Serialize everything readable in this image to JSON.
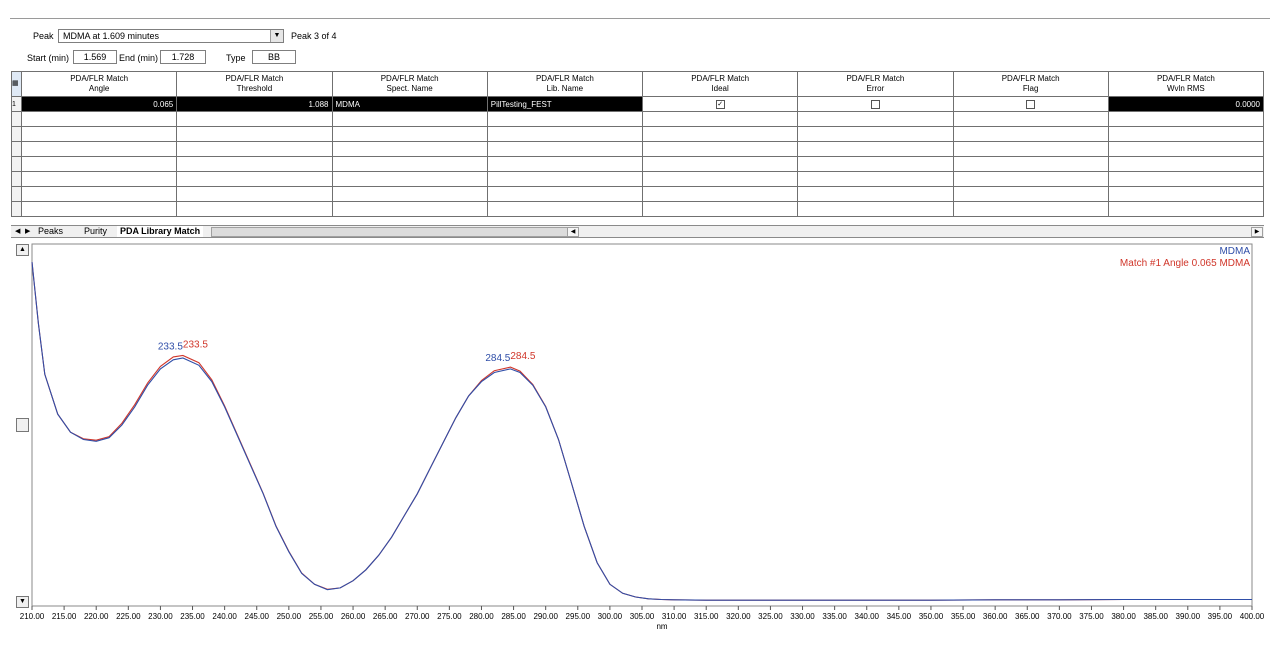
{
  "peak_selector": {
    "label": "Peak",
    "value": "MDMA at 1.609 minutes",
    "count": "Peak 3 of 4"
  },
  "times": {
    "start_label": "Start (min)",
    "start_value": "1.569",
    "end_label": "End (min)",
    "end_value": "1.728",
    "type_label": "Type",
    "type_value": "BB"
  },
  "table": {
    "columns": [
      {
        "line1": "PDA/FLR Match",
        "line2": "Angle"
      },
      {
        "line1": "PDA/FLR Match",
        "line2": "Threshold"
      },
      {
        "line1": "PDA/FLR Match",
        "line2": "Spect. Name"
      },
      {
        "line1": "PDA/FLR Match",
        "line2": "Lib. Name"
      },
      {
        "line1": "PDA/FLR Match",
        "line2": "Ideal"
      },
      {
        "line1": "PDA/FLR Match",
        "line2": "Error"
      },
      {
        "line1": "PDA/FLR Match",
        "line2": "Flag"
      },
      {
        "line1": "PDA/FLR Match",
        "line2": "Wvln RMS"
      }
    ],
    "row1": {
      "index": "1",
      "angle": "0.065",
      "threshold": "1.088",
      "spect_name": "MDMA",
      "lib_name": "PillTesting_FEST",
      "ideal": true,
      "error": false,
      "flag": false,
      "wvln_rms": "0.0000"
    }
  },
  "tabs": [
    {
      "label": "Peaks",
      "active": false
    },
    {
      "label": "Purity",
      "active": false
    },
    {
      "label": "PDA Library Match",
      "active": true
    }
  ],
  "colors": {
    "series_sample": "#2f4ea8",
    "series_match": "#d0362a"
  },
  "chart_data": {
    "type": "line",
    "xlabel": "nm",
    "xlim": [
      210,
      400
    ],
    "x_ticks": [
      "210.00",
      "215.00",
      "220.00",
      "225.00",
      "230.00",
      "235.00",
      "240.00",
      "245.00",
      "250.00",
      "255.00",
      "260.00",
      "265.00",
      "270.00",
      "275.00",
      "280.00",
      "285.00",
      "290.00",
      "295.00",
      "300.00",
      "305.00",
      "310.00",
      "315.00",
      "320.00",
      "325.00",
      "330.00",
      "335.00",
      "340.00",
      "345.00",
      "350.00",
      "355.00",
      "360.00",
      "365.00",
      "370.00",
      "375.00",
      "380.00",
      "385.00",
      "390.00",
      "395.00",
      "400.00"
    ],
    "ylim": [
      0,
      1
    ],
    "legend": [
      "MDMA",
      "Match #1 Angle 0.065 MDMA"
    ],
    "legend_placement": "top-right",
    "peak_labels": [
      {
        "x": 233.5,
        "sample_label": "233.5",
        "match_label": "233.5"
      },
      {
        "x": 284.5,
        "sample_label": "284.5",
        "match_label": "284.5"
      }
    ],
    "series": [
      {
        "name": "MDMA",
        "x": [
          210,
          211,
          212,
          214,
          216,
          218,
          220,
          222,
          224,
          226,
          228,
          230,
          232,
          233.5,
          236,
          238,
          240,
          242,
          244,
          246,
          248,
          250,
          252,
          254,
          256,
          258,
          260,
          262,
          264,
          266,
          268,
          270,
          272,
          274,
          276,
          278,
          280,
          282,
          284.5,
          286,
          288,
          290,
          292,
          294,
          296,
          298,
          300,
          302,
          304,
          306,
          308,
          310,
          315,
          320,
          330,
          340,
          350,
          360,
          370,
          380,
          390,
          400
        ],
        "y": [
          0.95,
          0.78,
          0.64,
          0.53,
          0.48,
          0.46,
          0.455,
          0.465,
          0.5,
          0.55,
          0.61,
          0.655,
          0.68,
          0.685,
          0.665,
          0.62,
          0.55,
          0.47,
          0.39,
          0.31,
          0.22,
          0.15,
          0.09,
          0.06,
          0.045,
          0.05,
          0.07,
          0.1,
          0.14,
          0.19,
          0.25,
          0.31,
          0.38,
          0.45,
          0.52,
          0.58,
          0.62,
          0.645,
          0.655,
          0.645,
          0.61,
          0.55,
          0.46,
          0.34,
          0.22,
          0.12,
          0.06,
          0.035,
          0.025,
          0.02,
          0.018,
          0.017,
          0.016,
          0.016,
          0.016,
          0.016,
          0.016,
          0.017,
          0.017,
          0.018,
          0.018,
          0.018
        ]
      },
      {
        "name": "Match #1 Angle 0.065 MDMA",
        "x": [
          210,
          211,
          212,
          214,
          216,
          218,
          220,
          222,
          224,
          226,
          228,
          230,
          232,
          233.5,
          236,
          238,
          240,
          242,
          244,
          246,
          248,
          250,
          252,
          254,
          256,
          258,
          260,
          262,
          264,
          266,
          268,
          270,
          272,
          274,
          276,
          278,
          280,
          282,
          284.5,
          286,
          288,
          290,
          292,
          294,
          296,
          298,
          300,
          302,
          304,
          306,
          308,
          310,
          315,
          320,
          330,
          340,
          350,
          360,
          370,
          380,
          390,
          400
        ],
        "y": [
          0.95,
          0.78,
          0.64,
          0.53,
          0.48,
          0.462,
          0.458,
          0.468,
          0.505,
          0.556,
          0.616,
          0.662,
          0.688,
          0.692,
          0.672,
          0.625,
          0.553,
          0.472,
          0.392,
          0.311,
          0.221,
          0.151,
          0.091,
          0.06,
          0.046,
          0.05,
          0.07,
          0.1,
          0.14,
          0.19,
          0.25,
          0.31,
          0.38,
          0.45,
          0.52,
          0.58,
          0.623,
          0.65,
          0.66,
          0.649,
          0.612,
          0.551,
          0.46,
          0.34,
          0.22,
          0.12,
          0.06,
          0.035,
          0.025,
          0.02,
          0.018,
          0.017,
          0.016,
          0.016,
          0.016,
          0.016,
          0.016,
          0.017,
          0.017,
          0.018,
          0.018,
          0.018
        ]
      }
    ]
  }
}
